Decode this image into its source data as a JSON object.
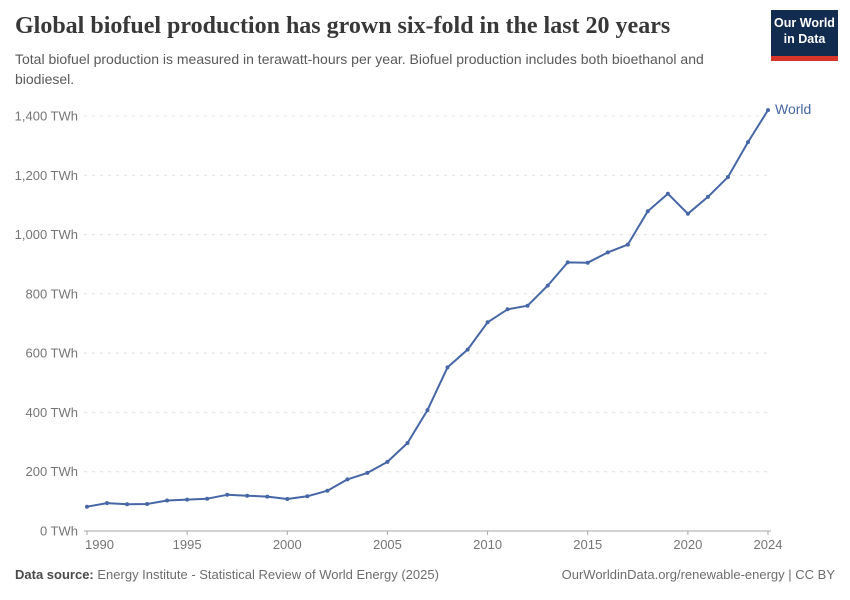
{
  "header": {
    "title": "Global biofuel production has grown six-fold in the last 20 years",
    "subtitle": "Total biofuel production is measured in terawatt-hours per year. Biofuel production includes both bioethanol and biodiesel.",
    "logo": {
      "line1": "Our World",
      "line2": "in Data",
      "bg_color": "#122c4f",
      "accent_color": "#d8352a"
    }
  },
  "chart_data": {
    "type": "line",
    "title": "Global biofuel production has grown six-fold in the last 20 years",
    "unit": "TWh",
    "x": [
      1990,
      1991,
      1992,
      1993,
      1994,
      1995,
      1996,
      1997,
      1998,
      1999,
      2000,
      2001,
      2002,
      2003,
      2004,
      2005,
      2006,
      2007,
      2008,
      2009,
      2010,
      2011,
      2012,
      2013,
      2014,
      2015,
      2016,
      2017,
      2018,
      2019,
      2020,
      2021,
      2022,
      2023,
      2024
    ],
    "series": [
      {
        "name": "World",
        "color": "#4666a5",
        "values": [
          82,
          94,
          90,
          91,
          103,
          106,
          109,
          122,
          119,
          116,
          108,
          117,
          136,
          174,
          196,
          233,
          297,
          408,
          552,
          612,
          704,
          748,
          760,
          828,
          906,
          905,
          940,
          966,
          1079,
          1138,
          1070,
          1127,
          1194,
          1312,
          1420
        ]
      }
    ],
    "x_ticks": [
      1990,
      1995,
      2000,
      2005,
      2010,
      2015,
      2020,
      2024
    ],
    "y_ticks": [
      0,
      200,
      400,
      600,
      800,
      1000,
      1200,
      1400
    ],
    "y_tick_suffix": " TWh",
    "xlim": [
      1990,
      2024
    ],
    "ylim": [
      0,
      1400
    ],
    "grid": "horizontal-dashed",
    "legend": "end-of-line-label",
    "end_label": "World"
  },
  "footer": {
    "source_label": "Data source:",
    "source_text": "Energy Institute - Statistical Review of World Energy (2025)",
    "credit": "OurWorldinData.org/renewable-energy | CC BY"
  },
  "colors": {
    "line": "#4666a5",
    "grid": "#e0e0e0",
    "axis": "#a6a6a6",
    "tick_text": "#757575",
    "title_text": "#383838",
    "subtitle_text": "#595959",
    "footer_text": "#6d6d6d"
  }
}
